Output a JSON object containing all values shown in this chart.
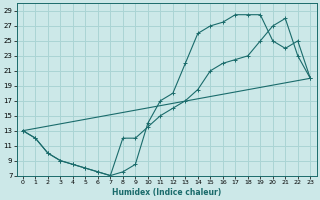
{
  "xlabel": "Humidex (Indice chaleur)",
  "xlim": [
    -0.5,
    23.5
  ],
  "ylim": [
    7,
    30
  ],
  "xticks": [
    0,
    1,
    2,
    3,
    4,
    5,
    6,
    7,
    8,
    9,
    10,
    11,
    12,
    13,
    14,
    15,
    16,
    17,
    18,
    19,
    20,
    21,
    22,
    23
  ],
  "yticks": [
    7,
    9,
    11,
    13,
    15,
    17,
    19,
    21,
    23,
    25,
    27,
    29
  ],
  "bg_color": "#cce8e8",
  "grid_color": "#aad4d4",
  "line_color": "#1a6b6b",
  "line1_x": [
    0,
    1,
    2,
    3,
    4,
    5,
    6,
    7,
    8,
    9,
    10,
    11,
    12,
    13,
    14,
    15,
    16,
    17,
    18,
    19,
    20,
    21,
    22,
    23
  ],
  "line1_y": [
    13,
    12,
    10,
    9,
    8.5,
    8,
    7.5,
    7,
    7.5,
    8.5,
    14,
    17,
    18,
    22,
    26,
    27,
    27.5,
    28.5,
    28.5,
    28.5,
    25,
    24,
    25,
    20
  ],
  "line2_x": [
    0,
    1,
    2,
    3,
    4,
    5,
    6,
    7,
    8,
    9,
    10,
    11,
    12,
    13,
    14,
    15,
    16,
    17,
    18,
    19,
    20,
    21,
    22,
    23
  ],
  "line2_y": [
    13,
    12,
    10,
    9,
    8.5,
    8,
    7.5,
    7,
    12,
    12,
    13.5,
    15,
    16,
    17,
    18.5,
    21,
    22,
    22.5,
    23,
    25,
    27,
    28,
    23,
    20
  ],
  "line3_x": [
    0,
    23
  ],
  "line3_y": [
    13,
    20
  ]
}
